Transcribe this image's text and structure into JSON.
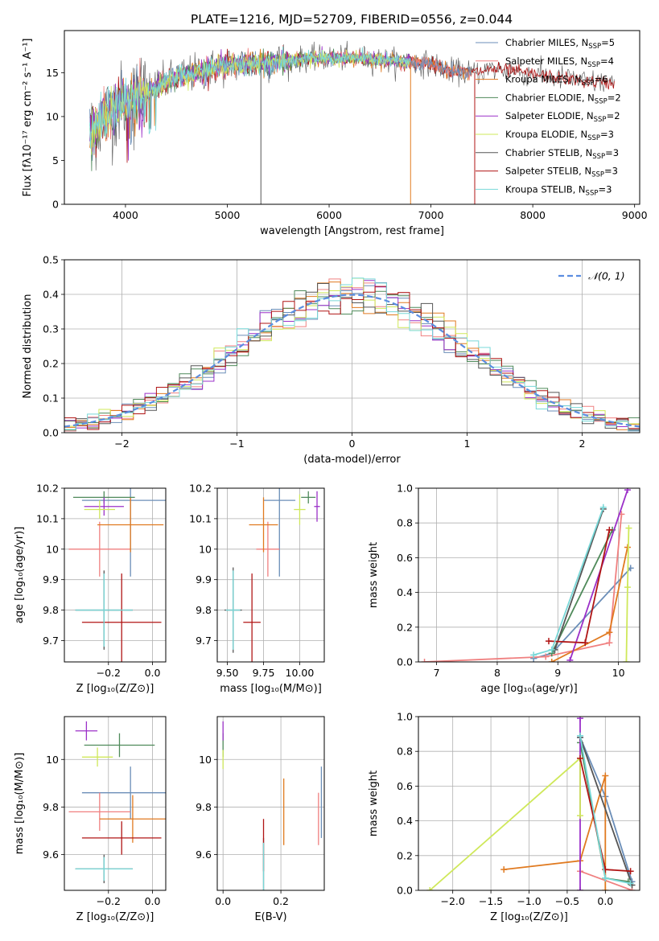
{
  "figure_title": "PLATE=1216, MJD=52709, FIBERID=0556, z=0.044",
  "colors": {
    "chabrier_miles": "#6b8eb8",
    "salpeter_miles": "#f08080",
    "kroupa_miles": "#e07a20",
    "chabrier_elodie": "#4f8a5a",
    "salpeter_elodie": "#9b30c8",
    "kroupa_elodie": "#cfe85a",
    "chabrier_stelib": "#555555",
    "salpeter_stelib": "#b01515",
    "kroupa_stelib": "#78d8d8",
    "gaussian": "#5b8de0"
  },
  "chart_data": [
    {
      "id": "spectrum",
      "type": "line",
      "xlabel": "wavelength [Angstrom, rest frame]",
      "ylabel": "Flux [fλ10⁻¹⁷ erg cm⁻² s⁻¹ A⁻¹]",
      "xlim": [
        3400,
        9050
      ],
      "ylim": [
        0,
        19.8
      ],
      "xticks": [
        4000,
        5000,
        6000,
        7000,
        8000,
        9000
      ],
      "yticks": [
        0,
        5,
        10,
        15
      ],
      "legend_position": "upper-right",
      "legend": [
        {
          "text": "Chabrier MILES, N",
          "sub": "SSP",
          "suffix": "=5",
          "color": "chabrier_miles"
        },
        {
          "text": "Salpeter MILES, N",
          "sub": "SSP",
          "suffix": "=4",
          "color": "salpeter_miles"
        },
        {
          "text": "Kroupa MILES, N",
          "sub": "SSP",
          "suffix": "=6",
          "color": "kroupa_miles"
        },
        {
          "text": "Chabrier ELODIE, N",
          "sub": "SSP",
          "suffix": "=2",
          "color": "chabrier_elodie"
        },
        {
          "text": "Salpeter ELODIE, N",
          "sub": "SSP",
          "suffix": "=2",
          "color": "salpeter_elodie"
        },
        {
          "text": "Kroupa ELODIE, N",
          "sub": "SSP",
          "suffix": "=3",
          "color": "kroupa_elodie"
        },
        {
          "text": "Chabrier STELIB, N",
          "sub": "SSP",
          "suffix": "=3",
          "color": "chabrier_stelib"
        },
        {
          "text": "Salpeter STELIB, N",
          "sub": "SSP",
          "suffix": "=3",
          "color": "salpeter_stelib"
        },
        {
          "text": "Kroupa STELIB, N",
          "sub": "SSP",
          "suffix": "=3",
          "color": "kroupa_stelib"
        }
      ],
      "continuum": {
        "x": [
          3650,
          3800,
          3950,
          4100,
          4300,
          4500,
          4700,
          4900,
          5100,
          5300,
          5500,
          5800,
          6100,
          6400,
          6700,
          7000,
          7200,
          7400,
          7600,
          7800,
          8000,
          8200,
          8500,
          8800
        ],
        "y": [
          8.0,
          10.0,
          11.5,
          12.0,
          13.3,
          14.5,
          15.0,
          15.6,
          16.0,
          16.1,
          16.3,
          16.6,
          16.7,
          16.6,
          16.3,
          16.0,
          15.2,
          15.0,
          15.4,
          15.2,
          14.8,
          14.5,
          14.0,
          13.8
        ]
      }
    },
    {
      "id": "residuals",
      "type": "histogram",
      "xlabel": "(data-model)/error",
      "ylabel": "Normed distribution",
      "xlim": [
        -2.5,
        2.5
      ],
      "ylim": [
        0,
        0.5
      ],
      "xticks": [
        -2,
        -1,
        0,
        1,
        2
      ],
      "xtick_labels": [
        "−2",
        "−1",
        "0",
        "1",
        "2"
      ],
      "yticks": [
        0,
        0.1,
        0.2,
        0.3,
        0.4,
        0.5
      ],
      "ytick_labels": [
        "0.0",
        "0.1",
        "0.2",
        "0.3",
        "0.4",
        "0.5"
      ],
      "legend_position": "upper-right",
      "legend_label": "𝒩(0, 1)",
      "bin_width": 0.1
    },
    {
      "id": "age-vs-Z",
      "type": "scatter",
      "xlabel": "Z [log₁₀(Z/Z⊙)]",
      "ylabel": "age  [log₁₀(age/yr)]",
      "xlim": [
        -0.4,
        0.06
      ],
      "ylim": [
        9.63,
        10.2
      ],
      "xticks": [
        -0.2,
        0.0
      ],
      "xtick_labels": [
        "−0.2",
        "0.0"
      ],
      "yticks": [
        9.7,
        9.8,
        9.9,
        10.0,
        10.1,
        10.2
      ],
      "points": [
        {
          "s": "chabrier_miles",
          "x": -0.1,
          "y": 10.16,
          "xerr": 0.22,
          "yerr": 0.25
        },
        {
          "s": "salpeter_miles",
          "x": -0.24,
          "y": 10.0,
          "xerr": 0.14,
          "yerr": 0.09
        },
        {
          "s": "kroupa_miles",
          "x": -0.1,
          "y": 10.08,
          "xerr": 0.15,
          "yerr": 0.09
        },
        {
          "s": "chabrier_elodie",
          "x": -0.22,
          "y": 10.17,
          "xerr": 0.14,
          "yerr": 0.02
        },
        {
          "s": "salpeter_elodie",
          "x": -0.22,
          "y": 10.14,
          "xerr": 0.09,
          "yerr": 0.03
        },
        {
          "s": "kroupa_elodie",
          "x": -0.24,
          "y": 10.13,
          "xerr": 0.07,
          "yerr": 0.03
        },
        {
          "s": "chabrier_stelib",
          "x": -0.22,
          "y": 9.8,
          "xerr": 0.13,
          "yerr": 0.13
        },
        {
          "s": "salpeter_stelib",
          "x": -0.14,
          "y": 9.76,
          "xerr": 0.18,
          "yerr": 0.16
        },
        {
          "s": "kroupa_stelib",
          "x": -0.22,
          "y": 9.8,
          "xerr": 0.13,
          "yerr": 0.12
        }
      ]
    },
    {
      "id": "age-vs-mass",
      "type": "scatter",
      "xlabel": "mass [log₁₀(M/M⊙)]",
      "ylabel": "",
      "xlim": [
        9.43,
        10.17
      ],
      "ylim": [
        9.63,
        10.2
      ],
      "xticks": [
        9.5,
        9.75,
        10.0
      ],
      "xtick_labels": [
        "9.50",
        "9.75",
        "10.00"
      ],
      "yticks": [
        9.7,
        9.8,
        9.9,
        10.0,
        10.1,
        10.2
      ],
      "points": [
        {
          "s": "chabrier_miles",
          "x": 9.86,
          "y": 10.16,
          "xerr": 0.11,
          "yerr": 0.25
        },
        {
          "s": "salpeter_miles",
          "x": 9.78,
          "y": 10.0,
          "xerr": 0.08,
          "yerr": 0.09
        },
        {
          "s": "kroupa_miles",
          "x": 9.75,
          "y": 10.08,
          "xerr": 0.1,
          "yerr": 0.09
        },
        {
          "s": "chabrier_elodie",
          "x": 10.06,
          "y": 10.17,
          "xerr": 0.05,
          "yerr": 0.02
        },
        {
          "s": "salpeter_elodie",
          "x": 10.12,
          "y": 10.14,
          "xerr": 0.02,
          "yerr": 0.05
        },
        {
          "s": "kroupa_elodie",
          "x": 10.0,
          "y": 10.13,
          "xerr": 0.04,
          "yerr": 0.05
        },
        {
          "s": "chabrier_stelib",
          "x": 9.54,
          "y": 9.8,
          "xerr": 0.06,
          "yerr": 0.14
        },
        {
          "s": "salpeter_stelib",
          "x": 9.67,
          "y": 9.76,
          "xerr": 0.06,
          "yerr": 0.16
        },
        {
          "s": "kroupa_stelib",
          "x": 9.54,
          "y": 9.8,
          "xerr": 0.05,
          "yerr": 0.13
        }
      ]
    },
    {
      "id": "mass-weight-vs-age",
      "type": "line",
      "xlabel": "age  [log₁₀(age/yr)]",
      "ylabel": "mass weight",
      "xlim": [
        6.7,
        10.35
      ],
      "ylim": [
        0,
        1
      ],
      "xticks": [
        7,
        8,
        9,
        10
      ],
      "yticks": [
        0,
        0.2,
        0.4,
        0.6,
        0.8,
        1.0
      ],
      "ytick_labels": [
        "0.0",
        "0.2",
        "0.4",
        "0.6",
        "0.8",
        "1.0"
      ],
      "series": [
        {
          "s": "chabrier_miles",
          "x": [
            8.6,
            8.9,
            10.2
          ],
          "y": [
            0.02,
            0.05,
            0.54
          ]
        },
        {
          "s": "salpeter_miles",
          "x": [
            6.8,
            8.8,
            9.85,
            10.05
          ],
          "y": [
            0.0,
            0.03,
            0.11,
            0.85
          ]
        },
        {
          "s": "kroupa_miles",
          "x": [
            8.9,
            9.85,
            10.15
          ],
          "y": [
            0.0,
            0.17,
            0.66
          ]
        },
        {
          "s": "chabrier_elodie",
          "x": [
            8.9,
            9.9
          ],
          "y": [
            0.05,
            0.76
          ]
        },
        {
          "s": "salpeter_elodie",
          "x": [
            9.2,
            10.15
          ],
          "y": [
            0.01,
            0.99
          ]
        },
        {
          "s": "kroupa_elodie",
          "x": [
            10.13,
            10.15,
            10.17
          ],
          "y": [
            0.0,
            0.43,
            0.77
          ]
        },
        {
          "s": "chabrier_stelib",
          "x": [
            8.95,
            9.75
          ],
          "y": [
            0.07,
            0.88
          ]
        },
        {
          "s": "salpeter_stelib",
          "x": [
            8.85,
            9.45,
            9.85
          ],
          "y": [
            0.12,
            0.11,
            0.76
          ]
        },
        {
          "s": "kroupa_stelib",
          "x": [
            8.6,
            8.9,
            9.75
          ],
          "y": [
            0.04,
            0.07,
            0.89
          ]
        }
      ]
    },
    {
      "id": "mass-vs-Z",
      "type": "scatter",
      "xlabel": "Z [log₁₀(Z/Z⊙)]",
      "ylabel": "mass [log₁₀(M/M⊙)]",
      "xlim": [
        -0.4,
        0.06
      ],
      "ylim": [
        9.45,
        10.18
      ],
      "xticks": [
        -0.2,
        0.0
      ],
      "xtick_labels": [
        "−0.2",
        "0.0"
      ],
      "yticks": [
        9.6,
        9.8,
        10.0
      ],
      "points": [
        {
          "s": "chabrier_miles",
          "x": -0.1,
          "y": 9.86,
          "xerr": 0.22,
          "yerr": 0.11
        },
        {
          "s": "salpeter_miles",
          "x": -0.24,
          "y": 9.78,
          "xerr": 0.14,
          "yerr": 0.08
        },
        {
          "s": "kroupa_miles",
          "x": -0.09,
          "y": 9.75,
          "xerr": 0.15,
          "yerr": 0.1
        },
        {
          "s": "chabrier_elodie",
          "x": -0.15,
          "y": 10.06,
          "xerr": 0.16,
          "yerr": 0.05
        },
        {
          "s": "salpeter_elodie",
          "x": -0.3,
          "y": 10.12,
          "xerr": 0.05,
          "yerr": 0.04
        },
        {
          "s": "kroupa_elodie",
          "x": -0.25,
          "y": 10.01,
          "xerr": 0.07,
          "yerr": 0.04
        },
        {
          "s": "chabrier_stelib",
          "x": -0.22,
          "y": 9.54,
          "xerr": 0.13,
          "yerr": 0.06
        },
        {
          "s": "salpeter_stelib",
          "x": -0.14,
          "y": 9.67,
          "xerr": 0.18,
          "yerr": 0.07
        },
        {
          "s": "kroupa_stelib",
          "x": -0.22,
          "y": 9.54,
          "xerr": 0.13,
          "yerr": 0.05
        }
      ]
    },
    {
      "id": "mass-vs-ebv",
      "type": "scatter",
      "xlabel": "E(B-V)",
      "ylabel": "",
      "xlim": [
        -0.02,
        0.35
      ],
      "ylim": [
        9.45,
        10.18
      ],
      "xticks": [
        0.0,
        0.2
      ],
      "xtick_labels": [
        "0.0",
        "0.2"
      ],
      "yticks": [
        9.6,
        9.8,
        10.0
      ],
      "points": [
        {
          "s": "chabrier_miles",
          "x": 0.34,
          "y": 9.82,
          "xerr": 0,
          "yerr": 0.15
        },
        {
          "s": "salpeter_miles",
          "x": 0.33,
          "y": 9.75,
          "xerr": 0,
          "yerr": 0.11
        },
        {
          "s": "kroupa_miles",
          "x": 0.21,
          "y": 9.78,
          "xerr": 0,
          "yerr": 0.14
        },
        {
          "s": "chabrier_elodie",
          "x": 0.0,
          "y": 10.06,
          "xerr": 0,
          "yerr": 0.05
        },
        {
          "s": "salpeter_elodie",
          "x": 0.0,
          "y": 10.12,
          "xerr": 0,
          "yerr": 0.04
        },
        {
          "s": "kroupa_elodie",
          "x": 0.0,
          "y": 10.0,
          "xerr": 0,
          "yerr": 0.04
        },
        {
          "s": "chabrier_stelib",
          "x": 0.14,
          "y": 9.56,
          "xerr": 0,
          "yerr": 0.11
        },
        {
          "s": "salpeter_stelib",
          "x": 0.14,
          "y": 9.64,
          "xerr": 0,
          "yerr": 0.11
        },
        {
          "s": "kroupa_stelib",
          "x": 0.14,
          "y": 9.55,
          "xerr": 0,
          "yerr": 0.1
        }
      ]
    },
    {
      "id": "mass-weight-vs-Z",
      "type": "line",
      "xlabel": "Z [log₁₀(Z/Z⊙)]",
      "ylabel": "mass weight",
      "xlim": [
        -2.45,
        0.45
      ],
      "ylim": [
        0,
        1
      ],
      "xticks": [
        -2.0,
        -1.5,
        -1.0,
        -0.5,
        0.0
      ],
      "xtick_labels": [
        "−2.0",
        "−1.5",
        "−1.0",
        "−0.5",
        "0.0"
      ],
      "yticks": [
        0,
        0.2,
        0.4,
        0.6,
        0.8,
        1.0
      ],
      "ytick_labels": [
        "0.0",
        "0.2",
        "0.4",
        "0.6",
        "0.8",
        "1.0"
      ],
      "series": [
        {
          "s": "chabrier_miles",
          "x": [
            -0.33,
            0.0,
            0.35
          ],
          "y": [
            0.88,
            0.54,
            0.05
          ]
        },
        {
          "s": "salpeter_miles",
          "x": [
            -0.33,
            0.35
          ],
          "y": [
            0.11,
            0.0
          ]
        },
        {
          "s": "kroupa_miles",
          "x": [
            -1.33,
            -0.33,
            0.0,
            0.0
          ],
          "y": [
            0.12,
            0.17,
            0.66,
            0.0
          ]
        },
        {
          "s": "chabrier_elodie",
          "x": [
            -0.33,
            0.0,
            0.3
          ],
          "y": [
            0.85,
            0.07,
            0.05
          ]
        },
        {
          "s": "salpeter_elodie",
          "x": [
            -0.33,
            -0.33
          ],
          "y": [
            0.0,
            0.99
          ]
        },
        {
          "s": "kroupa_elodie",
          "x": [
            -2.3,
            -0.33,
            -0.33
          ],
          "y": [
            0.0,
            0.76,
            0.43
          ]
        },
        {
          "s": "chabrier_stelib",
          "x": [
            -0.33,
            0.35
          ],
          "y": [
            0.88,
            0.03
          ]
        },
        {
          "s": "salpeter_stelib",
          "x": [
            -0.33,
            0.0,
            0.33
          ],
          "y": [
            0.76,
            0.12,
            0.11
          ]
        },
        {
          "s": "kroupa_stelib",
          "x": [
            -0.33,
            0.0,
            0.33
          ],
          "y": [
            0.89,
            0.07,
            0.04
          ]
        }
      ]
    }
  ]
}
